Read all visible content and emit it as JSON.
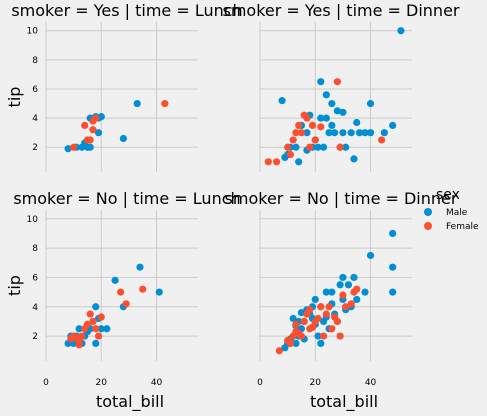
{
  "chart_data": {
    "type": "scatter",
    "xlabel": "total_bill",
    "ylabel": "tip",
    "xlim": [
      0,
      55
    ],
    "ylim": [
      0.3,
      10.6
    ],
    "x_ticks": [
      0,
      20,
      40
    ],
    "y_ticks": [
      2,
      4,
      6,
      8,
      10
    ],
    "grid": true,
    "hue": "sex",
    "colors": {
      "Male": "#008fd5",
      "Female": "#fc4f30"
    },
    "legend": {
      "title": "sex",
      "entries": [
        "Male",
        "Female"
      ],
      "placement": "right"
    },
    "panels": [
      {
        "title": "smoker = Yes | time = Lunch",
        "series": [
          {
            "name": "Male",
            "points": [
              [
                8,
                1.9
              ],
              [
                11,
                2.0
              ],
              [
                13,
                2.0
              ],
              [
                15,
                2.0
              ],
              [
                14,
                2.3
              ],
              [
                16,
                2.0
              ],
              [
                16,
                4.0
              ],
              [
                18,
                4.1
              ],
              [
                19,
                4.0
              ],
              [
                20,
                4.1
              ],
              [
                19,
                3.0
              ],
              [
                28,
                2.6
              ],
              [
                33,
                5.0
              ]
            ]
          },
          {
            "name": "Female",
            "points": [
              [
                10,
                2.0
              ],
              [
                14,
                3.5
              ],
              [
                15,
                2.5
              ],
              [
                16,
                2.5
              ],
              [
                17,
                3.2
              ],
              [
                17,
                3.8
              ],
              [
                18,
                4.0
              ],
              [
                43,
                5.0
              ]
            ]
          }
        ]
      },
      {
        "title": "smoker = Yes | time = Dinner",
        "series": [
          {
            "name": "Male",
            "points": [
              [
                51,
                10.0
              ],
              [
                22,
                6.5
              ],
              [
                24,
                5.6
              ],
              [
                26,
                5.0
              ],
              [
                28,
                4.5
              ],
              [
                30,
                4.4
              ],
              [
                40,
                5.0
              ],
              [
                48,
                3.5
              ],
              [
                35,
                3.7
              ],
              [
                33,
                3.0
              ],
              [
                30,
                3.0
              ],
              [
                27,
                3.0
              ],
              [
                25,
                3.0
              ],
              [
                23,
                2.0
              ],
              [
                21,
                2.0
              ],
              [
                19,
                2.0
              ],
              [
                17,
                3.0
              ],
              [
                15,
                3.5
              ],
              [
                13,
                2.0
              ],
              [
                11,
                2.0
              ],
              [
                9,
                1.3
              ],
              [
                10,
                1.5
              ],
              [
                8,
                5.2
              ],
              [
                14,
                1.0
              ],
              [
                17,
                1.8
              ],
              [
                20,
                2.5
              ],
              [
                22,
                4.0
              ],
              [
                24,
                4.0
              ],
              [
                26,
                3.5
              ],
              [
                29,
                2.0
              ],
              [
                31,
                2.0
              ],
              [
                34,
                1.2
              ],
              [
                36,
                3.0
              ],
              [
                38,
                3.0
              ],
              [
                40,
                3.0
              ],
              [
                45,
                3.0
              ],
              [
                18,
                4.2
              ]
            ]
          },
          {
            "name": "Female",
            "points": [
              [
                3,
                1.0
              ],
              [
                6,
                1.0
              ],
              [
                10,
                2.0
              ],
              [
                11,
                1.5
              ],
              [
                12,
                2.5
              ],
              [
                13,
                3.0
              ],
              [
                14,
                3.5
              ],
              [
                15,
                3.0
              ],
              [
                16,
                4.2
              ],
              [
                17,
                4.0
              ],
              [
                18,
                2.0
              ],
              [
                19,
                3.5
              ],
              [
                20,
                2.5
              ],
              [
                22,
                3.4
              ],
              [
                28,
                6.5
              ],
              [
                29,
                2.0
              ],
              [
                44,
                2.5
              ]
            ]
          }
        ]
      },
      {
        "title": "smoker = No | time = Lunch",
        "series": [
          {
            "name": "Male",
            "points": [
              [
                8,
                1.5
              ],
              [
                9,
                2.0
              ],
              [
                10,
                1.5
              ],
              [
                11,
                2.0
              ],
              [
                12,
                2.5
              ],
              [
                13,
                1.5
              ],
              [
                14,
                2.0
              ],
              [
                15,
                2.3
              ],
              [
                16,
                2.5
              ],
              [
                17,
                3.0
              ],
              [
                18,
                1.5
              ],
              [
                19,
                3.2
              ],
              [
                20,
                2.5
              ],
              [
                22,
                2.5
              ],
              [
                25,
                5.8
              ],
              [
                28,
                4.0
              ],
              [
                34,
                6.7
              ],
              [
                41,
                5.0
              ],
              [
                18,
                4.0
              ]
            ]
          },
          {
            "name": "Female",
            "points": [
              [
                9,
                1.8
              ],
              [
                10,
                2.0
              ],
              [
                11,
                1.9
              ],
              [
                12,
                1.7
              ],
              [
                13,
                2.0
              ],
              [
                14,
                2.5
              ],
              [
                15,
                2.8
              ],
              [
                16,
                3.5
              ],
              [
                17,
                3.0
              ],
              [
                18,
                2.5
              ],
              [
                19,
                2.0
              ],
              [
                20,
                3.3
              ],
              [
                27,
                5.0
              ],
              [
                29,
                4.2
              ],
              [
                35,
                5.2
              ],
              [
                12,
                1.4
              ]
            ]
          }
        ]
      },
      {
        "title": "smoker = No | time = Dinner",
        "series": [
          {
            "name": "Male",
            "points": [
              [
                48,
                9.0
              ],
              [
                40,
                7.5
              ],
              [
                48,
                6.7
              ],
              [
                48,
                5.0
              ],
              [
                34,
                6.0
              ],
              [
                32,
                5.5
              ],
              [
                30,
                6.0
              ],
              [
                29,
                5.5
              ],
              [
                26,
                5.0
              ],
              [
                24,
                5.0
              ],
              [
                22,
                4.0
              ],
              [
                20,
                4.5
              ],
              [
                18,
                3.5
              ],
              [
                16,
                3.0
              ],
              [
                15,
                2.5
              ],
              [
                14,
                2.0
              ],
              [
                13,
                1.5
              ],
              [
                12,
                2.0
              ],
              [
                11,
                1.8
              ],
              [
                10,
                1.5
              ],
              [
                9,
                1.2
              ],
              [
                17,
                3.8
              ],
              [
                19,
                3.2
              ],
              [
                21,
                2.0
              ],
              [
                23,
                3.0
              ],
              [
                25,
                2.5
              ],
              [
                27,
                3.5
              ],
              [
                28,
                3.0
              ],
              [
                30,
                4.5
              ],
              [
                31,
                3.8
              ],
              [
                33,
                4.0
              ],
              [
                35,
                4.5
              ],
              [
                38,
                5.0
              ],
              [
                12,
                3.2
              ],
              [
                15,
                3.6
              ],
              [
                20,
                2.8
              ],
              [
                22,
                1.5
              ],
              [
                24,
                3.3
              ],
              [
                13,
                2.7
              ],
              [
                16,
                1.8
              ],
              [
                19,
                4.0
              ],
              [
                26,
                4.2
              ],
              [
                14,
                3.0
              ]
            ]
          },
          {
            "name": "Female",
            "points": [
              [
                7,
                1.0
              ],
              [
                10,
                1.7
              ],
              [
                11,
                1.5
              ],
              [
                12,
                2.0
              ],
              [
                13,
                2.8
              ],
              [
                14,
                2.2
              ],
              [
                15,
                2.0
              ],
              [
                16,
                3.0
              ],
              [
                17,
                3.5
              ],
              [
                18,
                2.5
              ],
              [
                19,
                2.6
              ],
              [
                20,
                3.0
              ],
              [
                21,
                3.2
              ],
              [
                22,
                4.0
              ],
              [
                23,
                2.0
              ],
              [
                24,
                3.5
              ],
              [
                25,
                4.0
              ],
              [
                26,
                2.5
              ],
              [
                28,
                3.0
              ],
              [
                29,
                2.0
              ],
              [
                30,
                4.8
              ],
              [
                31,
                4.0
              ],
              [
                33,
                4.2
              ],
              [
                34,
                5.0
              ],
              [
                35,
                5.2
              ],
              [
                13,
                2.3
              ],
              [
                18,
                3.8
              ],
              [
                27,
                3.3
              ]
            ]
          }
        ]
      }
    ]
  }
}
